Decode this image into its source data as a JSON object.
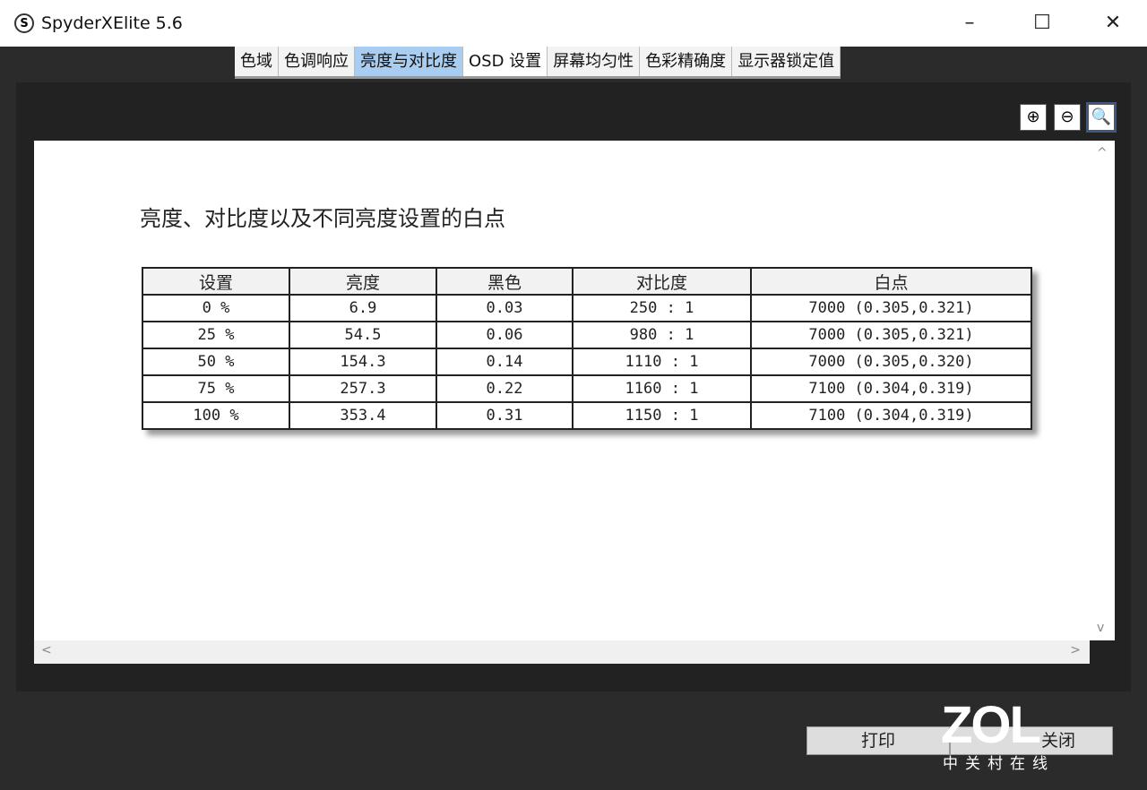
{
  "window": {
    "title": "SpyderXElite 5.6",
    "logo_letter": "S",
    "minimize": "–",
    "maximize": "☐",
    "close": "✕"
  },
  "tabs": [
    "色域",
    "色调响应",
    "亮度与对比度",
    "OSD 设置",
    "屏幕均匀性",
    "色彩精确度",
    "显示器锁定值"
  ],
  "active_tab": "亮度与对比度",
  "zoom": {
    "in": "⊕",
    "out": "⊖",
    "fit": "🔍"
  },
  "report": {
    "heading": "亮度、对比度以及不同亮度设置的白点",
    "columns": [
      "设置",
      "亮度",
      "黑色",
      "对比度",
      "白点"
    ],
    "rows": [
      [
        "0 %",
        "6.9",
        "0.03",
        "250 : 1",
        "7000 (0.305,0.321)"
      ],
      [
        "25 %",
        "54.5",
        "0.06",
        "980 : 1",
        "7000 (0.305,0.321)"
      ],
      [
        "50 %",
        "154.3",
        "0.14",
        "1110 : 1",
        "7000 (0.305,0.320)"
      ],
      [
        "75 %",
        "257.3",
        "0.22",
        "1160 : 1",
        "7100 (0.304,0.319)"
      ],
      [
        "100 %",
        "353.4",
        "0.31",
        "1150 : 1",
        "7100 (0.304,0.319)"
      ]
    ]
  },
  "scroll": {
    "up": "^",
    "down": "v",
    "left": "<",
    "right": ">"
  },
  "buttons": {
    "print": "打印",
    "close": "关闭"
  },
  "watermark": {
    "logo": "ZOL",
    "sub": "中关村在线"
  }
}
